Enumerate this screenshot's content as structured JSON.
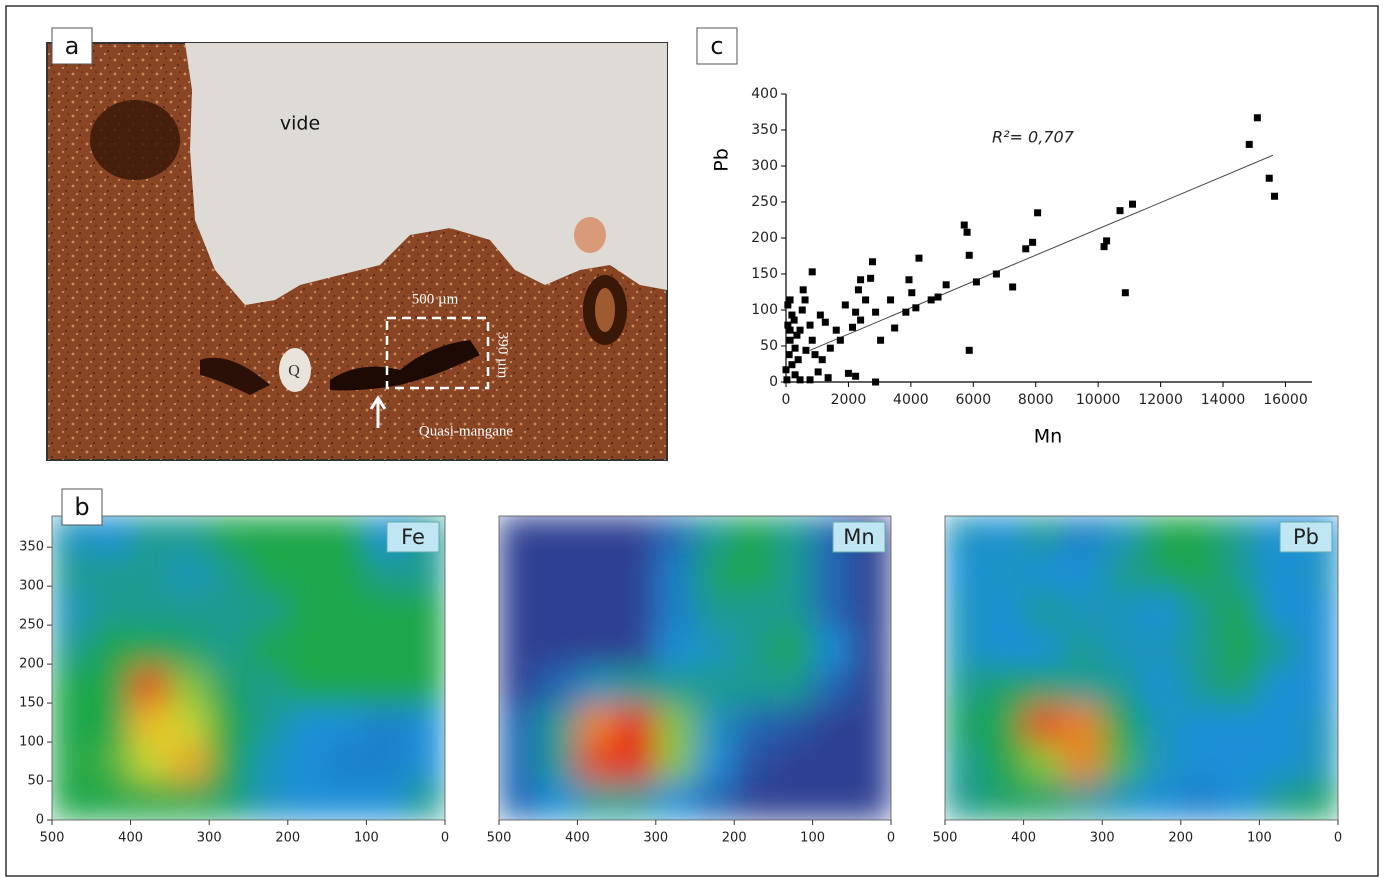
{
  "panels": {
    "a": {
      "label": "a",
      "annotations": {
        "void": "vide",
        "width": "500 µm",
        "height": "390 µm",
        "quartz": "Q",
        "nodule": "Quasi-mangane"
      }
    }
  },
  "chart_data": [
    {
      "type": "scatter",
      "panel": "c",
      "x_label": "Mn",
      "y_label": "Pb",
      "annotation": "R²= 0,707",
      "color": "#000000",
      "x": [
        15100,
        14840,
        15480,
        15650,
        11100,
        10700,
        10270,
        10190,
        10870,
        8060,
        7900,
        7680,
        6740,
        7260,
        6100,
        5710,
        5800,
        5870,
        5870,
        4870,
        5130,
        4260,
        4650,
        4160,
        3840,
        3940,
        4030,
        3350,
        3480,
        3030,
        2870,
        2770,
        2710,
        2390,
        2320,
        2550,
        2230,
        2130,
        2390,
        2870,
        1900,
        1740,
        1260,
        1100,
        840,
        610,
        840,
        450,
        290,
        550,
        1350,
        1030,
        2000,
        2230,
        130,
        190,
        60,
        130,
        100,
        190,
        290,
        30,
        450,
        770,
        390,
        640,
        930,
        1420,
        1610,
        260,
        520,
        130,
        350,
        770,
        1160,
        0,
        60
      ],
      "y": [
        367,
        330,
        283,
        258,
        247,
        238,
        196,
        188,
        124,
        235,
        194,
        185,
        150,
        132,
        139,
        218,
        208,
        176,
        44,
        118,
        135,
        172,
        114,
        103,
        97,
        142,
        124,
        114,
        75,
        58,
        97,
        167,
        144,
        142,
        128,
        114,
        97,
        76,
        86,
        0,
        107,
        58,
        83,
        93,
        153,
        114,
        58,
        72,
        47,
        128,
        6,
        14,
        12,
        8,
        114,
        93,
        79,
        58,
        38,
        24,
        10,
        3,
        3,
        3,
        31,
        44,
        38,
        47,
        72,
        86,
        100,
        72,
        65,
        79,
        31,
        17,
        107
      ],
      "trendline": {
        "x": [
          770,
          15600
        ],
        "y": [
          44,
          315
        ]
      },
      "xlim": [
        0,
        16850
      ],
      "ylim": [
        0,
        400
      ],
      "xticks": [
        0,
        2000,
        4000,
        6000,
        8000,
        10000,
        12000,
        14000,
        16000
      ],
      "yticks": [
        0,
        50,
        100,
        150,
        200,
        250,
        300,
        350,
        400
      ]
    },
    {
      "type": "heatmap",
      "panel": "b",
      "label": "Fe",
      "xlim": [
        500,
        0
      ],
      "ylim": [
        0,
        390
      ],
      "xticks": [
        500,
        400,
        300,
        200,
        100,
        0
      ],
      "yticks": [
        0,
        50,
        100,
        150,
        200,
        250,
        300,
        350
      ],
      "zlim": [
        0,
        4
      ],
      "colorscale": [
        "#2e3f93",
        "#1a8fd8",
        "#1aa64a",
        "#f2e52a",
        "#e3201b"
      ],
      "z": [
        [
          1.2,
          1,
          1.5,
          1.5,
          2,
          2,
          2,
          2,
          1,
          1.5
        ],
        [
          1.5,
          1.5,
          1.5,
          1.2,
          1.5,
          2,
          2,
          2,
          1.5,
          1.5
        ],
        [
          1.2,
          1.5,
          1.5,
          1.5,
          1.5,
          1.5,
          2,
          2,
          2,
          2
        ],
        [
          1.5,
          2,
          2,
          1.8,
          1.5,
          2,
          2,
          2,
          2,
          2
        ],
        [
          2,
          2,
          3.8,
          2.5,
          1.8,
          1.5,
          2,
          2,
          2,
          2
        ],
        [
          2,
          2,
          3.2,
          2.8,
          2,
          1.5,
          1,
          1,
          0.8,
          1
        ],
        [
          2,
          2.2,
          2.8,
          3.3,
          2,
          1.2,
          1,
          0.8,
          0.8,
          1
        ],
        [
          2,
          2,
          2,
          2,
          1.8,
          1.2,
          1,
          1,
          1,
          1.5
        ]
      ]
    },
    {
      "type": "heatmap",
      "label": "Mn",
      "xlim": [
        500,
        0
      ],
      "ylim": [
        0,
        390
      ],
      "xticks": [
        500,
        400,
        300,
        200,
        100,
        0
      ],
      "zlim": [
        0,
        4
      ],
      "colorscale": [
        "#2e3f93",
        "#1a8fd8",
        "#1aa64a",
        "#f2e52a",
        "#e3201b"
      ],
      "z": [
        [
          0,
          0,
          0,
          0,
          0.5,
          1.5,
          2,
          1.5,
          0.5,
          0
        ],
        [
          0,
          0,
          0,
          0,
          0.8,
          1.8,
          2,
          1.5,
          0.5,
          0
        ],
        [
          0,
          0,
          0,
          0,
          0.8,
          1.5,
          1.5,
          1.5,
          0.5,
          0
        ],
        [
          0,
          0,
          0,
          0,
          1,
          1.2,
          1.5,
          2,
          1,
          0
        ],
        [
          0,
          0.5,
          1.2,
          1.5,
          1.5,
          1.5,
          1.5,
          1.5,
          0.5,
          0
        ],
        [
          0.5,
          1.5,
          3.5,
          4,
          2.5,
          1.2,
          0.5,
          0.3,
          0,
          0
        ],
        [
          0.5,
          1.5,
          3.8,
          4,
          2.5,
          1,
          0.2,
          0,
          0,
          0
        ],
        [
          0.5,
          1,
          1.5,
          1.5,
          1,
          0.5,
          0,
          0,
          0,
          0
        ]
      ]
    },
    {
      "type": "heatmap",
      "label": "Pb",
      "xlim": [
        500,
        0
      ],
      "ylim": [
        0,
        390
      ],
      "xticks": [
        500,
        400,
        300,
        200,
        100,
        0
      ],
      "zlim": [
        0,
        4
      ],
      "colorscale": [
        "#2e3f93",
        "#1a8fd8",
        "#1aa64a",
        "#f2e52a",
        "#e3201b"
      ],
      "z": [
        [
          1.2,
          1,
          1.5,
          0.8,
          1.2,
          2,
          2,
          1.5,
          1,
          1
        ],
        [
          1,
          1.2,
          1,
          1,
          1.5,
          1.8,
          2,
          1.5,
          1,
          1.2
        ],
        [
          1.2,
          1,
          1.5,
          1.2,
          1.2,
          1,
          1.5,
          2,
          1,
          1
        ],
        [
          1.2,
          1,
          1,
          1.5,
          1.2,
          1.2,
          1.5,
          2,
          1.5,
          1
        ],
        [
          1.5,
          1.8,
          1.8,
          1.5,
          1.5,
          1,
          1.5,
          1.8,
          1,
          1
        ],
        [
          1.8,
          2,
          3.8,
          3.5,
          2,
          1.2,
          1,
          1,
          1,
          1.2
        ],
        [
          1.5,
          2,
          2.5,
          3.5,
          2.2,
          1.2,
          1,
          1,
          1,
          1.2
        ],
        [
          1.5,
          1.8,
          1.8,
          1.5,
          1.2,
          1,
          0.8,
          1,
          1.5,
          1.8
        ]
      ]
    }
  ]
}
